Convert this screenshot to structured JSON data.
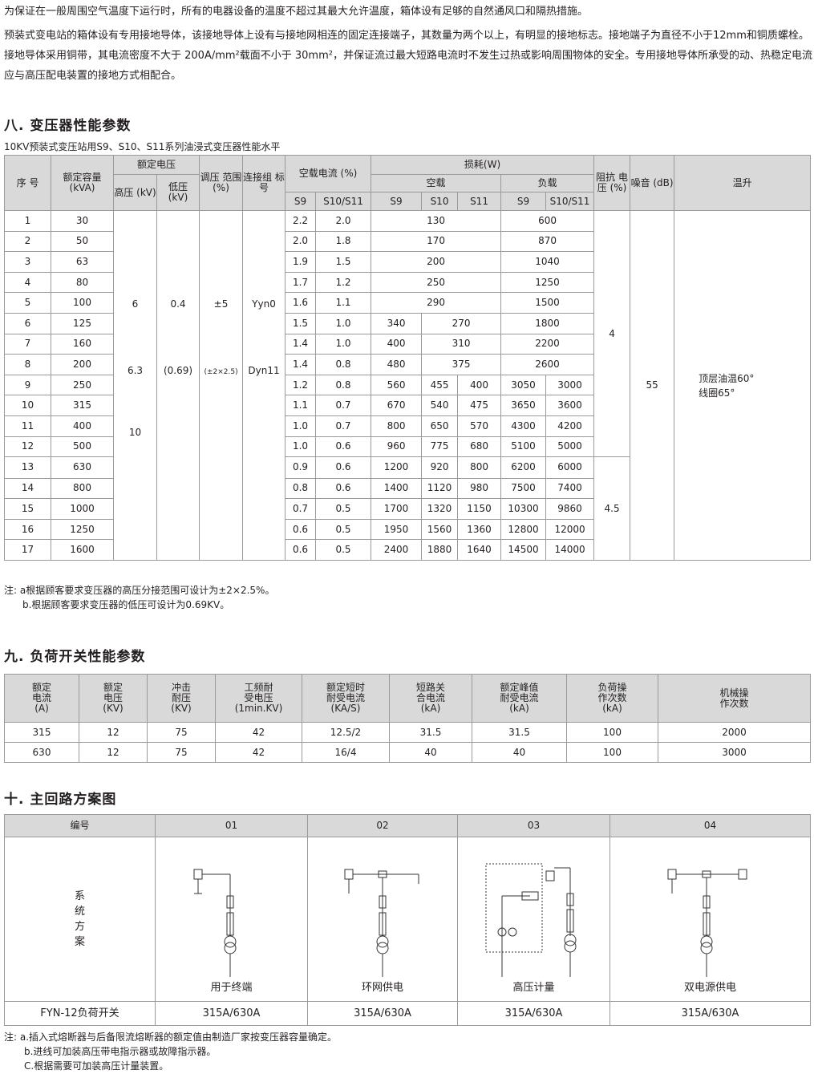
{
  "intro": [
    "为保证在一般周围空气温度下运行时，所有的电器设备的温度不超过其最大允许温度，箱体设有足够的自然通风口和隔热措施。",
    "预装式变电站的箱体设有专用接地导体，该接地导体上设有与接地网相连的固定连接端子，其数量为两个以上，有明显的接地标志。接地端子为直径不小于12mm和铜质螺栓。接地导体采用铜带，其电流密度不大于 200A/mm²载面不小于 30mm²，并保证流过最大短路电流时不发生过热或影响周围物体的安全。专用接地导体所承受的动、热稳定电流应与高压配电装置的接地方式相配合。"
  ],
  "sec8": {
    "title": "八. 变压器性能参数",
    "caption": "10KV预装式变压站用S9、S10、S11系列油浸式变压器性能水平",
    "headers": {
      "no": "序 号",
      "cap": "额定容量 (kVA)",
      "rv": "额定电压",
      "hv": "高压 (kV)",
      "lv": "低压 (kV)",
      "tap": "调压 范围 (%)",
      "conn": "连接组 标号",
      "nl": "空载电流 (%)",
      "nl9": "S9",
      "nl10": "S10/S11",
      "loss": "损耗(W)",
      "lossnl": "空载",
      "lossld": "负载",
      "s9": "S9",
      "s10": "S10",
      "s11": "S11",
      "ls9": "S9",
      "ls10": "S10/S11",
      "imp": "阻抗 电压 (%)",
      "noise": "噪音 (dB)",
      "temp": "温升"
    },
    "merged": {
      "hv": [
        "6",
        "6.3",
        "10"
      ],
      "lv": [
        "0.4",
        "(0.69)"
      ],
      "tap": [
        "±5",
        "(±2×2.5)"
      ],
      "conn": [
        "Yyn0",
        "Dyn11"
      ],
      "imp": [
        "4",
        "4.5"
      ],
      "noise": "55",
      "temp": [
        "顶层油温60°",
        "线圈65°"
      ]
    },
    "rows": [
      [
        "1",
        "30",
        "2.2",
        "2.0",
        "130",
        null,
        null,
        "600",
        null
      ],
      [
        "2",
        "50",
        "2.0",
        "1.8",
        "170",
        null,
        null,
        "870",
        null
      ],
      [
        "3",
        "63",
        "1.9",
        "1.5",
        "200",
        null,
        null,
        "1040",
        null
      ],
      [
        "4",
        "80",
        "1.7",
        "1.2",
        "250",
        null,
        null,
        "1250",
        null
      ],
      [
        "5",
        "100",
        "1.6",
        "1.1",
        "290",
        null,
        null,
        "1500",
        null
      ],
      [
        "6",
        "125",
        "1.5",
        "1.0",
        "340",
        "270",
        null,
        "1800",
        null
      ],
      [
        "7",
        "160",
        "1.4",
        "1.0",
        "400",
        "310",
        null,
        "2200",
        null
      ],
      [
        "8",
        "200",
        "1.4",
        "0.8",
        "480",
        "375",
        null,
        "2600",
        null
      ],
      [
        "9",
        "250",
        "1.2",
        "0.8",
        "560",
        "455",
        "400",
        "3050",
        "3000"
      ],
      [
        "10",
        "315",
        "1.1",
        "0.7",
        "670",
        "540",
        "475",
        "3650",
        "3600"
      ],
      [
        "11",
        "400",
        "1.0",
        "0.7",
        "800",
        "650",
        "570",
        "4300",
        "4200"
      ],
      [
        "12",
        "500",
        "1.0",
        "0.6",
        "960",
        "775",
        "680",
        "5100",
        "5000"
      ],
      [
        "13",
        "630",
        "0.9",
        "0.6",
        "1200",
        "920",
        "800",
        "6200",
        "6000"
      ],
      [
        "14",
        "800",
        "0.8",
        "0.6",
        "1400",
        "1120",
        "980",
        "7500",
        "7400"
      ],
      [
        "15",
        "1000",
        "0.7",
        "0.5",
        "1700",
        "1320",
        "1150",
        "10300",
        "9860"
      ],
      [
        "16",
        "1250",
        "0.6",
        "0.5",
        "1950",
        "1560",
        "1360",
        "12800",
        "12000"
      ],
      [
        "17",
        "1600",
        "0.6",
        "0.5",
        "2400",
        "1880",
        "1640",
        "14500",
        "14000"
      ]
    ],
    "notes": [
      "注: a根据顾客要求变压器的高压分接范围可设计为±2×2.5%。",
      "b.根据顾客要求变压器的低压可设计为0.69KV。"
    ]
  },
  "sec9": {
    "title": "九. 负荷开关性能参数",
    "headers": [
      "额定 电流 (A)",
      "额定 电压 (KV)",
      "冲击 耐压 (KV)",
      "工频耐 受电压 (1min.KV)",
      "额定短时 耐受电流 (KA/S)",
      "短路关 合电流 (kA)",
      "额定峰值 耐受电流 (kA)",
      "负荷操 作次数 (kA)",
      "机械操 作次数"
    ],
    "rows": [
      [
        "315",
        "12",
        "75",
        "42",
        "12.5/2",
        "31.5",
        "31.5",
        "100",
        "2000"
      ],
      [
        "630",
        "12",
        "75",
        "42",
        "16/4",
        "40",
        "40",
        "100",
        "3000"
      ]
    ]
  },
  "sec10": {
    "title": "十. 主回路方案图",
    "header": [
      "编号",
      "01",
      "02",
      "03",
      "04"
    ],
    "row_label": "系 统 方 案",
    "schemes": [
      "用于终端",
      "环网供电",
      "高压计量",
      "双电源供电"
    ],
    "model": "FYN-12负荷开关",
    "ratings": [
      "315A/630A",
      "315A/630A",
      "315A/630A",
      "315A/630A"
    ],
    "notes": [
      "注:  a.插入式熔断器与后备限流熔断器的额定值由制造厂家按变压器容量确定。",
      "b.进线可加装高压带电指示器或故障指示器。",
      "C.根据需要可加装高压计量装置。"
    ]
  }
}
